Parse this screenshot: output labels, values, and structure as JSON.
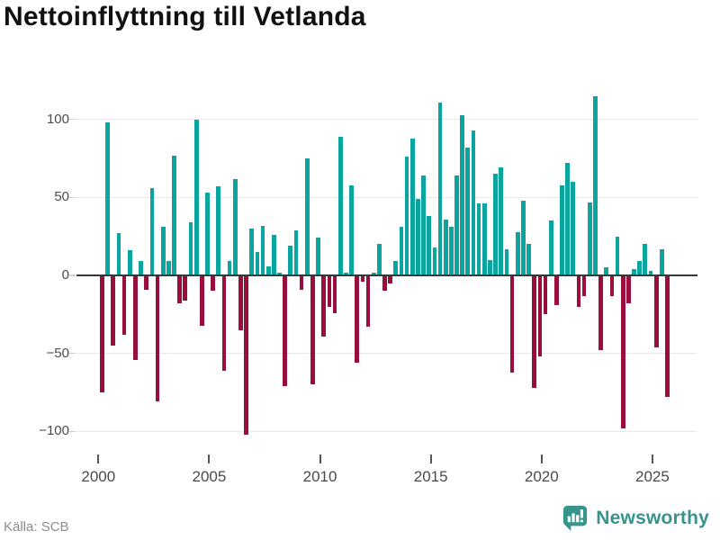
{
  "title": "Nettoinflyttning till Vetlanda",
  "footer": {
    "source": "Källa: SCB",
    "brand": "Newsworthy"
  },
  "colors": {
    "positive": "#0aa59e",
    "negative": "#990e3d",
    "brand_teal": "#36948b",
    "axis_line": "#383838",
    "gridline": "#e9e9e9",
    "tick_label": "#4a4a4a",
    "source_text": "#8c8c8c",
    "title_text": "#111111"
  },
  "chart_data": {
    "type": "bar",
    "title": "Nettoinflyttning till Vetlanda",
    "frequency": "quarterly",
    "start_period": "2000-Q1",
    "end_period": "2025-Q3",
    "values": [
      -75,
      98,
      -45,
      27,
      -38,
      16,
      -54,
      9,
      -9,
      56,
      -81,
      31,
      9,
      77,
      -18,
      -16,
      34,
      100,
      -32,
      53,
      -10,
      57,
      -61,
      9,
      62,
      -35,
      -102,
      30,
      15,
      32,
      6,
      26,
      2,
      -71,
      19,
      29,
      -9,
      75,
      -70,
      24,
      -39,
      -20,
      -24,
      89,
      2,
      58,
      -56,
      -4,
      -33,
      2,
      20,
      -10,
      -5,
      9,
      31,
      76,
      88,
      49,
      64,
      38,
      18,
      111,
      36,
      31,
      64,
      103,
      82,
      93,
      46,
      46,
      10,
      65,
      69,
      17,
      -62,
      28,
      48,
      20,
      -72,
      -52,
      -25,
      35,
      -19,
      58,
      72,
      60,
      -20,
      -13,
      47,
      115,
      -48,
      5,
      -13,
      25,
      -98,
      -18,
      4,
      9,
      20,
      3,
      -46,
      17,
      -78
    ],
    "yticks": [
      {
        "label": "100",
        "value": 100
      },
      {
        "label": "50",
        "value": 50
      },
      {
        "label": "0",
        "value": 0
      },
      {
        "label": "−50",
        "value": -50
      },
      {
        "label": "−100",
        "value": -100
      }
    ],
    "xticks": [
      {
        "label": "2000",
        "year": 2000
      },
      {
        "label": "2005",
        "year": 2005
      },
      {
        "label": "2010",
        "year": 2010
      },
      {
        "label": "2015",
        "year": 2015
      },
      {
        "label": "2020",
        "year": 2020
      },
      {
        "label": "2025",
        "year": 2025
      }
    ],
    "ylim": [
      -115,
      119
    ],
    "grid": true,
    "legend": "none"
  }
}
